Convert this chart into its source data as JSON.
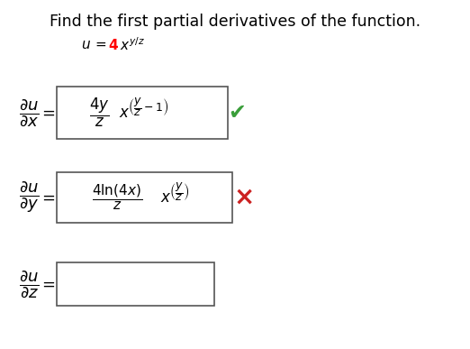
{
  "title": "Find the first partial derivatives of the function.",
  "title_fontsize": 12.5,
  "background_color": "#ffffff",
  "check_color": "#3a9e3a",
  "cross_color": "#cc2222",
  "fig_width": 5.22,
  "fig_height": 3.87,
  "dpi": 100
}
